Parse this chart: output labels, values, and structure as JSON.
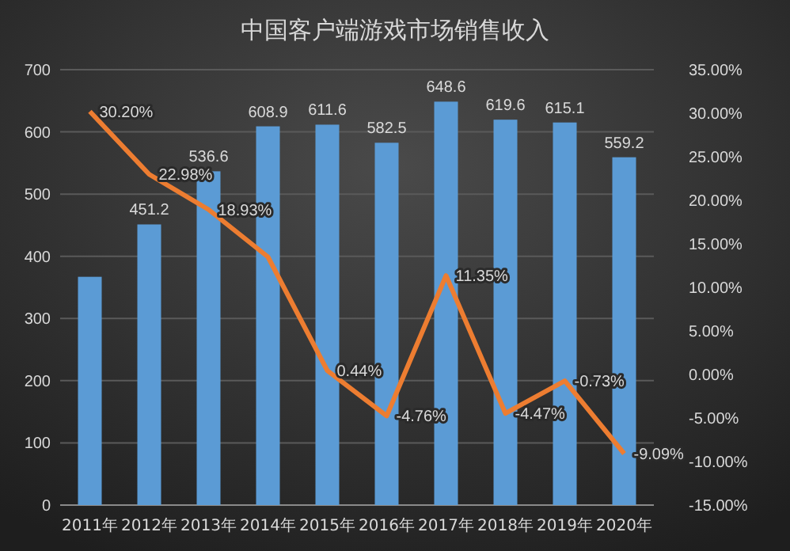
{
  "chart_data": {
    "type": "bar",
    "title": "中国客户端游戏市场销售收入",
    "categories": [
      "2011年",
      "2012年",
      "2013年",
      "2014年",
      "2015年",
      "2016年",
      "2017年",
      "2018年",
      "2019年",
      "2020年"
    ],
    "series": [
      {
        "color": "#5b9bd5",
        "values": [
          367,
          451.2,
          536.6,
          608.9,
          611.6,
          582.5,
          648.6,
          619.6,
          615.1,
          559.2
        ],
        "value_labels": [
          null,
          "451.2",
          "536.6",
          "608.9",
          "611.6",
          "582.5",
          "648.6",
          "619.6",
          "615.1",
          "559.2"
        ]
      },
      {
        "type": "line",
        "axis": "y2",
        "color": "#ed7d31",
        "values": [
          30.2,
          22.98,
          18.93,
          13.5,
          0.44,
          -4.76,
          11.35,
          -4.47,
          -0.73,
          -9.09
        ],
        "value_labels": [
          "30.20%",
          "22.98%",
          "18.93%",
          null,
          "0.44%",
          "-4.76%",
          "11.35%",
          "-4.47%",
          "-0.73%",
          "-9.09%"
        ]
      }
    ],
    "ylim": [
      0,
      700
    ],
    "yticks": [
      0,
      100,
      200,
      300,
      400,
      500,
      600,
      700
    ],
    "y2lim": [
      -15,
      35
    ],
    "y2ticks": [
      {
        "value": -15,
        "label": "-15.00%"
      },
      {
        "value": -10,
        "label": "-10.00%"
      },
      {
        "value": -5,
        "label": "-5.00%"
      },
      {
        "value": 0,
        "label": "0.00%"
      },
      {
        "value": 5,
        "label": "5.00%"
      },
      {
        "value": 10,
        "label": "10.00%"
      },
      {
        "value": 15,
        "label": "15.00%"
      },
      {
        "value": 20,
        "label": "20.00%"
      },
      {
        "value": 25,
        "label": "25.00%"
      },
      {
        "value": 30,
        "label": "30.00%"
      },
      {
        "value": 35,
        "label": "35.00%"
      }
    ],
    "grid": "y",
    "marker": "none",
    "line_style": "solid"
  }
}
